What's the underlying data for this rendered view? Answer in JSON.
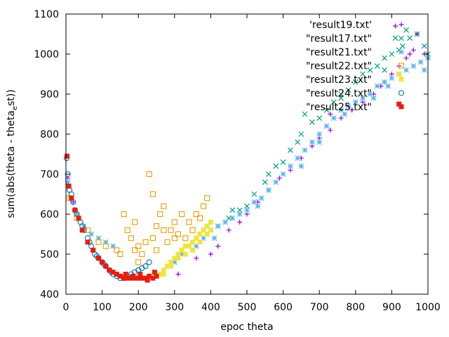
{
  "chart_data": {
    "type": "scatter",
    "title": "",
    "xlabel": "epoc theta",
    "ylabel": "sum(abs(theta - theta_est))",
    "ylabel_main": "sum(abs(theta - theta",
    "ylabel_sub": "e",
    "ylabel_tail": "st))",
    "xlim": [
      0,
      1000
    ],
    "ylim": [
      400,
      1100
    ],
    "xticks": [
      0,
      100,
      200,
      300,
      400,
      500,
      600,
      700,
      800,
      900,
      1000
    ],
    "yticks": [
      400,
      500,
      600,
      700,
      800,
      900,
      1000,
      1100
    ],
    "grid": false,
    "legend_position": "top-right",
    "series": [
      {
        "name": "'result19.txt'",
        "marker": "plus",
        "color": "#9400d3",
        "points": [
          [
            5,
            690
          ],
          [
            20,
            630
          ],
          [
            50,
            570
          ],
          [
            310,
            450
          ],
          [
            360,
            490
          ],
          [
            400,
            500
          ],
          [
            420,
            520
          ],
          [
            450,
            560
          ],
          [
            480,
            580
          ],
          [
            500,
            600
          ],
          [
            530,
            630
          ],
          [
            560,
            660
          ],
          [
            590,
            690
          ],
          [
            620,
            710
          ],
          [
            650,
            740
          ],
          [
            680,
            770
          ],
          [
            700,
            790
          ],
          [
            730,
            810
          ],
          [
            760,
            840
          ],
          [
            790,
            860
          ],
          [
            820,
            880
          ],
          [
            850,
            900
          ],
          [
            880,
            930
          ],
          [
            900,
            950
          ],
          [
            920,
            970
          ],
          [
            940,
            990
          ],
          [
            960,
            1010
          ],
          [
            970,
            1050
          ],
          [
            990,
            1000
          ],
          [
            1000,
            990
          ],
          [
            910,
            1070
          ],
          [
            730,
            850
          ],
          [
            870,
            920
          ],
          [
            950,
            1000
          ]
        ]
      },
      {
        "name": "\"result17.txt\"",
        "marker": "cross",
        "color": "#009e73",
        "points": [
          [
            400,
            560
          ],
          [
            420,
            570
          ],
          [
            450,
            590
          ],
          [
            480,
            610
          ],
          [
            500,
            620
          ],
          [
            520,
            650
          ],
          [
            550,
            680
          ],
          [
            580,
            720
          ],
          [
            600,
            730
          ],
          [
            620,
            760
          ],
          [
            640,
            780
          ],
          [
            650,
            800
          ],
          [
            660,
            850
          ],
          [
            680,
            830
          ],
          [
            700,
            840
          ],
          [
            720,
            860
          ],
          [
            740,
            880
          ],
          [
            760,
            890
          ],
          [
            780,
            910
          ],
          [
            800,
            930
          ],
          [
            820,
            950
          ],
          [
            840,
            960
          ],
          [
            860,
            970
          ],
          [
            880,
            990
          ],
          [
            900,
            1000
          ],
          [
            920,
            1010
          ],
          [
            930,
            1020
          ],
          [
            950,
            1040
          ],
          [
            970,
            1050
          ],
          [
            990,
            1020
          ],
          [
            1000,
            1000
          ],
          [
            910,
            1040
          ],
          [
            940,
            1060
          ],
          [
            460,
            610
          ],
          [
            560,
            700
          ],
          [
            760,
            900
          ],
          [
            880,
            960
          ]
        ]
      },
      {
        "name": "\"result21.txt\"",
        "marker": "star",
        "color": "#56b4e9",
        "points": [
          [
            5,
            680
          ],
          [
            15,
            640
          ],
          [
            30,
            600
          ],
          [
            50,
            570
          ],
          [
            70,
            550
          ],
          [
            90,
            540
          ],
          [
            110,
            530
          ],
          [
            130,
            520
          ],
          [
            300,
            480
          ],
          [
            320,
            500
          ],
          [
            340,
            520
          ],
          [
            360,
            520
          ],
          [
            380,
            540
          ],
          [
            400,
            560
          ],
          [
            420,
            570
          ],
          [
            440,
            580
          ],
          [
            460,
            590
          ],
          [
            480,
            600
          ],
          [
            500,
            610
          ],
          [
            520,
            630
          ],
          [
            540,
            640
          ],
          [
            560,
            660
          ],
          [
            580,
            680
          ],
          [
            600,
            700
          ],
          [
            620,
            720
          ],
          [
            640,
            740
          ],
          [
            660,
            760
          ],
          [
            680,
            780
          ],
          [
            700,
            800
          ],
          [
            720,
            820
          ],
          [
            740,
            840
          ],
          [
            760,
            860
          ],
          [
            780,
            870
          ],
          [
            800,
            880
          ],
          [
            820,
            890
          ],
          [
            840,
            900
          ],
          [
            860,
            920
          ],
          [
            880,
            930
          ],
          [
            900,
            940
          ],
          [
            920,
            950
          ],
          [
            940,
            960
          ],
          [
            960,
            970
          ],
          [
            980,
            980
          ],
          [
            1000,
            990
          ],
          [
            410,
            540
          ],
          [
            530,
            620
          ],
          [
            650,
            720
          ],
          [
            770,
            850
          ],
          [
            890,
            920
          ],
          [
            990,
            960
          ],
          [
            700,
            780
          ],
          [
            850,
            890
          ]
        ]
      },
      {
        "name": "\"result22.txt\"",
        "marker": "square",
        "color": "#e69f00",
        "points": [
          [
            10,
            640
          ],
          [
            30,
            590
          ],
          [
            60,
            560
          ],
          [
            90,
            530
          ],
          [
            110,
            520
          ],
          [
            140,
            510
          ],
          [
            160,
            600
          ],
          [
            170,
            560
          ],
          [
            180,
            540
          ],
          [
            190,
            510
          ],
          [
            200,
            520
          ],
          [
            210,
            500
          ],
          [
            220,
            530
          ],
          [
            230,
            700
          ],
          [
            240,
            540
          ],
          [
            250,
            570
          ],
          [
            260,
            600
          ],
          [
            270,
            560
          ],
          [
            280,
            530
          ],
          [
            290,
            560
          ],
          [
            300,
            580
          ],
          [
            320,
            600
          ],
          [
            340,
            580
          ],
          [
            360,
            600
          ],
          [
            380,
            620
          ],
          [
            390,
            640
          ],
          [
            150,
            500
          ],
          [
            200,
            480
          ],
          [
            250,
            510
          ],
          [
            300,
            540
          ],
          [
            350,
            560
          ],
          [
            270,
            620
          ],
          [
            310,
            550
          ],
          [
            240,
            650
          ],
          [
            190,
            580
          ],
          [
            330,
            540
          ],
          [
            370,
            590
          ]
        ]
      },
      {
        "name": "\"result23.txt\"",
        "marker": "square-filled",
        "color": "#f0e442",
        "points": [
          [
            260,
            450
          ],
          [
            270,
            460
          ],
          [
            280,
            470
          ],
          [
            290,
            480
          ],
          [
            300,
            490
          ],
          [
            310,
            500
          ],
          [
            320,
            510
          ],
          [
            330,
            520
          ],
          [
            340,
            520
          ],
          [
            350,
            530
          ],
          [
            360,
            540
          ],
          [
            370,
            550
          ],
          [
            380,
            560
          ],
          [
            390,
            570
          ],
          [
            400,
            580
          ],
          [
            290,
            470
          ],
          [
            310,
            490
          ],
          [
            330,
            500
          ],
          [
            350,
            510
          ],
          [
            370,
            530
          ],
          [
            390,
            550
          ],
          [
            400,
            560
          ],
          [
            270,
            450
          ],
          [
            920,
            950
          ]
        ]
      },
      {
        "name": "\"result24.txt\"",
        "marker": "circle",
        "color": "#0072b2",
        "points": [
          [
            2,
            740
          ],
          [
            5,
            700
          ],
          [
            10,
            660
          ],
          [
            20,
            630
          ],
          [
            30,
            600
          ],
          [
            40,
            580
          ],
          [
            50,
            560
          ],
          [
            60,
            540
          ],
          [
            70,
            520
          ],
          [
            80,
            500
          ],
          [
            90,
            490
          ],
          [
            100,
            480
          ],
          [
            110,
            470
          ],
          [
            120,
            460
          ],
          [
            130,
            450
          ],
          [
            140,
            445
          ],
          [
            150,
            440
          ],
          [
            160,
            440
          ],
          [
            170,
            445
          ],
          [
            180,
            450
          ],
          [
            190,
            455
          ],
          [
            200,
            460
          ],
          [
            210,
            465
          ],
          [
            220,
            470
          ],
          [
            230,
            480
          ],
          [
            15,
            650
          ],
          [
            25,
            610
          ],
          [
            45,
            570
          ],
          [
            65,
            530
          ],
          [
            85,
            495
          ],
          [
            105,
            475
          ],
          [
            125,
            455
          ]
        ]
      },
      {
        "name": "\"result25.txt\"",
        "marker": "square-filled",
        "color": "#e51e10",
        "points": [
          [
            3,
            745
          ],
          [
            8,
            670
          ],
          [
            15,
            640
          ],
          [
            25,
            610
          ],
          [
            35,
            590
          ],
          [
            45,
            560
          ],
          [
            60,
            530
          ],
          [
            75,
            510
          ],
          [
            90,
            490
          ],
          [
            100,
            480
          ],
          [
            110,
            470
          ],
          [
            120,
            460
          ],
          [
            130,
            455
          ],
          [
            140,
            450
          ],
          [
            150,
            445
          ],
          [
            160,
            440
          ],
          [
            170,
            440
          ],
          [
            180,
            440
          ],
          [
            190,
            440
          ],
          [
            200,
            440
          ],
          [
            210,
            440
          ],
          [
            220,
            440
          ],
          [
            230,
            445
          ],
          [
            240,
            440
          ],
          [
            250,
            445
          ],
          [
            165,
            450
          ],
          [
            185,
            445
          ],
          [
            205,
            450
          ],
          [
            225,
            435
          ],
          [
            245,
            455
          ],
          [
            920,
            875
          ]
        ]
      }
    ]
  }
}
